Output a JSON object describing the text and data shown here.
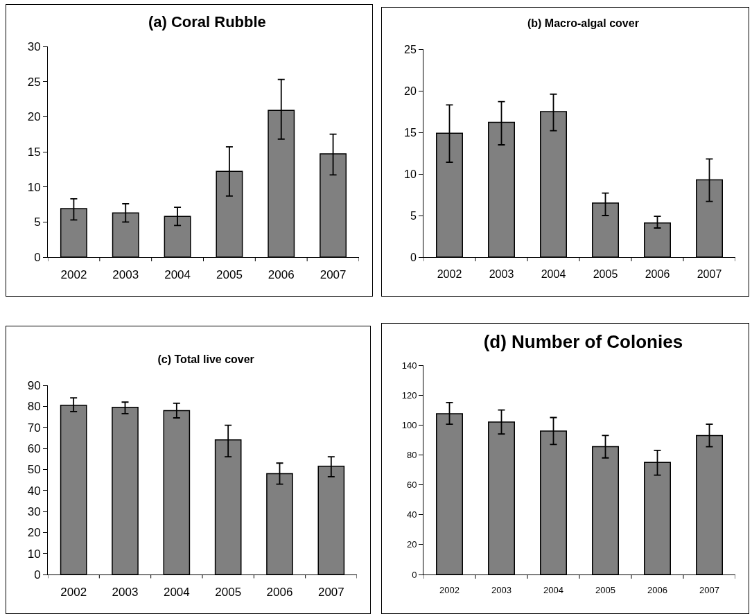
{
  "chart_data": [
    {
      "type": "bar",
      "title": "(a) Coral Rubble",
      "categories": [
        "2002",
        "2003",
        "2004",
        "2005",
        "2006",
        "2007"
      ],
      "values": [
        6.9,
        6.3,
        5.8,
        12.2,
        20.9,
        14.7
      ],
      "errors": [
        [
          5.3,
          8.3
        ],
        [
          5.0,
          7.6
        ],
        [
          4.5,
          7.1
        ],
        [
          8.7,
          15.7
        ],
        [
          16.8,
          25.3
        ],
        [
          11.7,
          17.5
        ]
      ],
      "color": "#808080",
      "ylim": [
        0,
        30
      ],
      "yticks": [
        0,
        5,
        10,
        15,
        20,
        25,
        30
      ],
      "grid": false
    },
    {
      "type": "bar",
      "title": "(b) Macro-algal cover",
      "categories": [
        "2002",
        "2003",
        "2004",
        "2005",
        "2006",
        "2007"
      ],
      "values": [
        14.9,
        16.2,
        17.5,
        6.5,
        4.1,
        9.3
      ],
      "errors": [
        [
          11.4,
          18.3
        ],
        [
          13.5,
          18.7
        ],
        [
          15.2,
          19.6
        ],
        [
          5.0,
          7.7
        ],
        [
          3.5,
          4.9
        ],
        [
          6.7,
          11.8
        ]
      ],
      "color": "#808080",
      "ylim": [
        0,
        25
      ],
      "yticks": [
        0,
        5,
        10,
        15,
        20,
        25
      ],
      "grid": false
    },
    {
      "type": "bar",
      "title": "(c) Total live cover",
      "categories": [
        "2002",
        "2003",
        "2004",
        "2005",
        "2006",
        "2007"
      ],
      "values": [
        80.5,
        79.5,
        78,
        64,
        48,
        51.5
      ],
      "errors": [
        [
          77.5,
          84
        ],
        [
          76.5,
          82
        ],
        [
          74.5,
          81.5
        ],
        [
          56,
          71
        ],
        [
          43,
          53
        ],
        [
          46.5,
          56
        ]
      ],
      "color": "#808080",
      "ylim": [
        0,
        90
      ],
      "yticks": [
        0,
        10,
        20,
        30,
        40,
        50,
        60,
        70,
        80,
        90
      ],
      "grid": false
    },
    {
      "type": "bar",
      "title": "(d) Number of Colonies",
      "categories": [
        "2002",
        "2003",
        "2004",
        "2005",
        "2006",
        "2007"
      ],
      "values": [
        107.5,
        102,
        96,
        85.5,
        75,
        93
      ],
      "errors": [
        [
          100.5,
          115
        ],
        [
          94,
          110
        ],
        [
          87,
          105
        ],
        [
          78,
          93
        ],
        [
          66.5,
          83
        ],
        [
          85.5,
          100.5
        ]
      ],
      "color": "#808080",
      "ylim": [
        0,
        140
      ],
      "yticks": [
        0,
        20,
        40,
        60,
        80,
        100,
        120,
        140
      ],
      "grid": false
    }
  ]
}
